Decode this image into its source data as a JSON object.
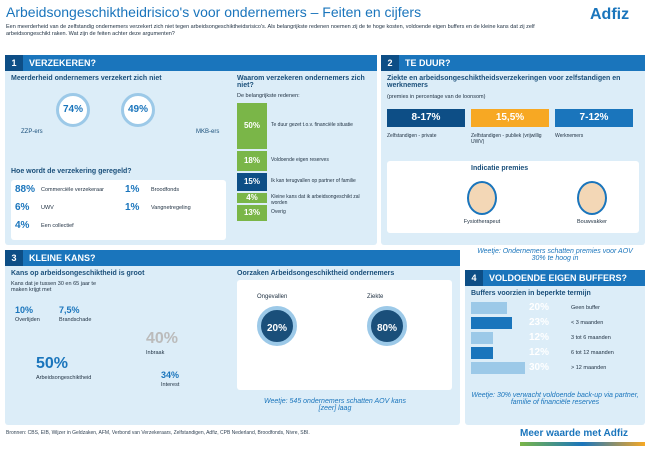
{
  "header": {
    "title": "Arbeidsongeschiktheidrisico's voor ondernemers – Feiten en cijfers",
    "intro": "Een meerderheid van de zelfstandig ondernemers verzekert zich niet tegen arbeidsongeschiktheidsrisico's. Als belangrijkste redenen noemen zij de te hoge kosten, voldoende eigen buffers en de kleine kans dat zij zelf arbeidsongeschikt raken. Wat zijn de feiten achter deze argumenten?",
    "logo": "Adfiz"
  },
  "section1": {
    "number": "1",
    "title": "VERZEKEREN?",
    "majority": {
      "title": "Meerderheid ondernemers verzekert zich niet",
      "stats": [
        "74%",
        "49%"
      ],
      "labels": [
        "ZZP-ers",
        "MKB-ers"
      ]
    },
    "how": {
      "title": "Hoe wordt de verzekering geregeld?",
      "items": [
        {
          "value": "88%",
          "label": "Commerciële verzekeraar"
        },
        {
          "value": "1%",
          "label": "Broodfonds"
        },
        {
          "value": "6%",
          "label": "UWV"
        },
        {
          "value": "1%",
          "label": "Vangnetregeling"
        },
        {
          "value": "4%",
          "label": "Een collectief"
        }
      ]
    },
    "why": {
      "title": "Waarom verzekeren ondernemers zich niet?",
      "subtitle": "De belangrijkste redenen:",
      "reasons": [
        {
          "value": 50,
          "label": "50%",
          "text": "Te duur gezet t.o.v. financiële situatie"
        },
        {
          "value": 18,
          "label": "18%",
          "text": "Voldoende eigen reserves"
        },
        {
          "value": 15,
          "label": "15%",
          "text": "Ik kan terugvallen op partner of familie"
        },
        {
          "value": 4,
          "label": "4%",
          "text": "Kleine kans dat ik arbeidsongeschikt zal worden"
        },
        {
          "value": 13,
          "label": "13%",
          "text": "Overig"
        }
      ]
    }
  },
  "section2": {
    "number": "2",
    "title": "TE DUUR?",
    "question": "Ziekte en arbeidsongeschiktheidsverzekeringen voor zelfstandigen en werknemers",
    "note": "(premies in percentage van de loonsom)",
    "ranges": [
      {
        "value": "8-17%",
        "label": "Zelfstandigen - private"
      },
      {
        "value": "15,5%",
        "label": "Zelfstandigen - publiek (vrijwillig UWV)"
      },
      {
        "value": "7-12%",
        "label": "Werknemers"
      }
    ],
    "premie_title": "Indicatie premies",
    "persons": [
      "Fysiotherapeut",
      "Bouwvakker"
    ],
    "weetje": "Weetje: Ondernemers schatten premies voor AOV 30% te hoog in"
  },
  "section3": {
    "number": "3",
    "title": "KLEINE KANS?",
    "subtitle": "Kans op arbeidsongeschiktheid is groot",
    "text": "Kans dat je tussen 30 en 65 jaar te maken krijgt met",
    "risks": [
      {
        "value": "10%",
        "label": "Overlijden"
      },
      {
        "value": "7,5%",
        "label": "Brandschade"
      },
      {
        "value": "40%",
        "label": "Inbraak"
      },
      {
        "value": "50%",
        "label": "Arbeidsongeschiktheid"
      },
      {
        "value": "34%",
        "label": "Interest"
      }
    ],
    "causes_title": "Oorzaken Arbeidsongeschiktheid ondernemers",
    "causes": [
      {
        "value": "20%",
        "label": "Ongevallen"
      },
      {
        "value": "80%",
        "label": "Ziekte"
      }
    ],
    "weetje": "Weetje: 545 ondernemers schatten AOV kans [zeer] laag"
  },
  "section4": {
    "number": "4",
    "title": "VOLDOENDE EIGEN BUFFERS?",
    "subtitle": "Buffers voorzien in beperkte termijn",
    "buffers": [
      {
        "value": 20,
        "label": "20%",
        "text": "Geen buffer"
      },
      {
        "value": 23,
        "label": "23%",
        "text": "< 3 maanden"
      },
      {
        "value": 12,
        "label": "12%",
        "text": "3 tot 6 maanden"
      },
      {
        "value": 12,
        "label": "12%",
        "text": "6 tot 12 maanden"
      },
      {
        "value": 30,
        "label": "30%",
        "text": "> 12 maanden"
      }
    ],
    "weetje": "Weetje: 30% verwacht voldoende back-up via partner, familie of financiële reserves"
  },
  "footer": {
    "sources": "Bronnen: CBS, EIB, Wijzer in Geldzaken, AFM, Verbond van Verzekeraars, Zelfstandigen, Adfiz, CPB Nederland, Broodfonds, Nivre, SBI.",
    "tagline": "Meer waarde met Adfiz"
  }
}
